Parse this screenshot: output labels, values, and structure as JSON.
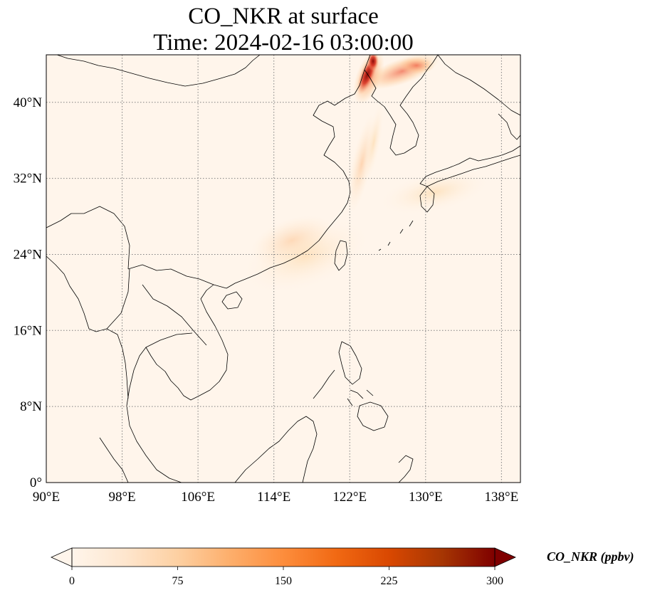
{
  "title": {
    "line1": "CO_NKR at surface",
    "line2": "Time: 2024-02-16 03:00:00"
  },
  "map": {
    "projection": "PlateCarree",
    "lon_range": [
      90,
      140
    ],
    "lat_range": [
      0,
      45
    ],
    "x_ticks": [
      {
        "value": 90,
        "label": "90°E"
      },
      {
        "value": 98,
        "label": "98°E"
      },
      {
        "value": 106,
        "label": "106°E"
      },
      {
        "value": 114,
        "label": "114°E"
      },
      {
        "value": 122,
        "label": "122°E"
      },
      {
        "value": 130,
        "label": "130°E"
      },
      {
        "value": 138,
        "label": "138°E"
      }
    ],
    "y_ticks": [
      {
        "value": 0,
        "label": "0°"
      },
      {
        "value": 8,
        "label": "8°N"
      },
      {
        "value": 16,
        "label": "16°N"
      },
      {
        "value": 24,
        "label": "24°N"
      },
      {
        "value": 32,
        "label": "32°N"
      },
      {
        "value": 40,
        "label": "40°N"
      }
    ],
    "gridlines": true,
    "gridline_style": "dotted",
    "background_color": "#fff5eb",
    "coastline_color": "#000000"
  },
  "colorbar": {
    "label": "CO_NKR (ppbv)",
    "colormap": "OrRd",
    "orientation": "horizontal",
    "extend": "both",
    "min": 0,
    "max": 300,
    "ticks": [
      {
        "value": 0,
        "label": "0"
      },
      {
        "value": 75,
        "label": "75"
      },
      {
        "value": 150,
        "label": "150"
      },
      {
        "value": 225,
        "label": "225"
      },
      {
        "value": 300,
        "label": "300"
      }
    ],
    "stops": [
      "#fff5eb",
      "#fee6ce",
      "#fdd0a2",
      "#fdae6b",
      "#fd8d3c",
      "#f16913",
      "#d94801",
      "#a63603",
      "#7f0000"
    ]
  },
  "plumes": [
    {
      "id": "korea-north-plume",
      "lon": 124.5,
      "lat": 42.8,
      "value": 300
    },
    {
      "id": "northeast-china-band",
      "lon": 126.5,
      "lat": 43.5,
      "value": 130
    },
    {
      "id": "korea-strait-streak",
      "lon": 123.5,
      "lat": 36.5,
      "value": 45
    },
    {
      "id": "south-china-coast",
      "lon": 115.5,
      "lat": 25.0,
      "value": 55
    },
    {
      "id": "sea-of-japan-outflow",
      "lon": 131.5,
      "lat": 31.0,
      "value": 20
    }
  ]
}
